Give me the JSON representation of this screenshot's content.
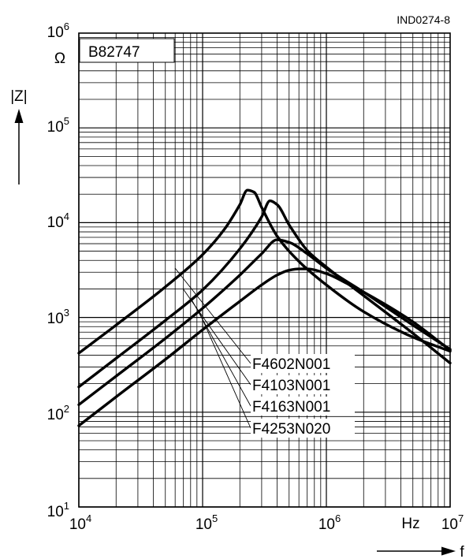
{
  "chart_data": {
    "type": "line",
    "title": "B82747",
    "figure_id": "IND0274-8",
    "xlabel": "f",
    "xunit": "Hz",
    "ylabel": "|Z|",
    "yunit": "Ω",
    "xscale": "log",
    "yscale": "log",
    "xlim": [
      10000,
      10000000
    ],
    "ylim": [
      10,
      1000000
    ],
    "grid": true,
    "x_ticks": [
      {
        "base": "10",
        "exp": "4"
      },
      {
        "base": "10",
        "exp": "5"
      },
      {
        "base": "10",
        "exp": "6"
      },
      {
        "base": "10",
        "exp": "7"
      }
    ],
    "y_ticks": [
      {
        "base": "10",
        "exp": "1"
      },
      {
        "base": "10",
        "exp": "2"
      },
      {
        "base": "10",
        "exp": "3"
      },
      {
        "base": "10",
        "exp": "4"
      },
      {
        "base": "10",
        "exp": "5"
      },
      {
        "base": "10",
        "exp": "6"
      }
    ],
    "series": [
      {
        "name": "F4602N001",
        "x": [
          10000,
          20000,
          50000,
          100000,
          150000,
          200000,
          230000,
          260000,
          300000,
          400000,
          600000,
          1000000,
          2000000,
          5000000,
          10000000
        ],
        "y": [
          420,
          830,
          2100,
          4600,
          8500,
          15500,
          22000,
          21000,
          14500,
          7200,
          3900,
          2200,
          1150,
          620,
          440
        ]
      },
      {
        "name": "F4103N001",
        "x": [
          10000,
          20000,
          50000,
          100000,
          200000,
          300000,
          350000,
          400000,
          500000,
          700000,
          1000000,
          2000000,
          5000000,
          10000000
        ],
        "y": [
          185,
          370,
          930,
          1950,
          5300,
          11500,
          17000,
          15500,
          9500,
          5100,
          3400,
          1700,
          680,
          330
        ]
      },
      {
        "name": "F4163N001",
        "x": [
          10000,
          20000,
          50000,
          100000,
          200000,
          300000,
          400000,
          500000,
          700000,
          1000000,
          2000000,
          5000000,
          10000000
        ],
        "y": [
          120,
          240,
          600,
          1250,
          2800,
          4700,
          6600,
          6200,
          4700,
          3300,
          1850,
          830,
          460
        ]
      },
      {
        "name": "F4253N020",
        "x": [
          10000,
          20000,
          50000,
          100000,
          200000,
          300000,
          400000,
          500000,
          600000,
          700000,
          1000000,
          1500000,
          2000000,
          5000000,
          10000000
        ],
        "y": [
          72,
          145,
          360,
          740,
          1480,
          2200,
          2800,
          3150,
          3250,
          3250,
          2900,
          2250,
          1850,
          900,
          450
        ]
      }
    ],
    "legend_placement": "center-right"
  }
}
